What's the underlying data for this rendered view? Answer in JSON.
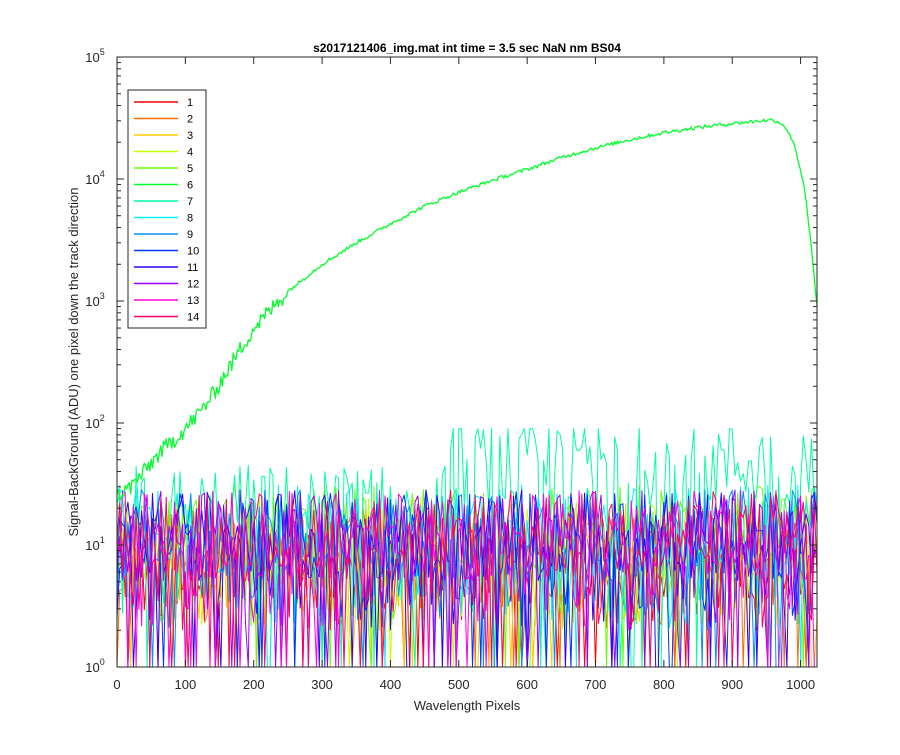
{
  "chart_data": {
    "type": "line",
    "title": "s2017121406_img.mat int time = 3.5 sec  NaN nm BS04",
    "xlabel": "Wavelength Pixels",
    "ylabel": "Signal-BackGround (ADU) one pixel down the track direction",
    "xlim": [
      0,
      1024
    ],
    "ylim": [
      1,
      100000
    ],
    "yscale": "log",
    "grid": false,
    "legend_position": "top-left",
    "x_ticks": [
      0,
      100,
      200,
      300,
      400,
      500,
      600,
      700,
      800,
      900,
      1000
    ],
    "x_tick_labels": [
      "0",
      "100",
      "200",
      "300",
      "400",
      "500",
      "600",
      "700",
      "800",
      "900",
      "1000"
    ],
    "y_ticks": [
      1,
      10,
      100,
      1000,
      10000,
      100000
    ],
    "y_tick_bases": [
      "10",
      "10",
      "10",
      "10",
      "10",
      "10"
    ],
    "y_tick_exponents": [
      "0",
      "1",
      "2",
      "3",
      "4",
      "5"
    ],
    "series": [
      {
        "name": "1",
        "color": "#ff0000",
        "kind": "noise",
        "typical": 8,
        "max": 40
      },
      {
        "name": "2",
        "color": "#ff6a00",
        "kind": "noise",
        "typical": 9,
        "max": 42
      },
      {
        "name": "3",
        "color": "#ffcc00",
        "kind": "noise",
        "typical": 9,
        "max": 42
      },
      {
        "name": "4",
        "color": "#c6ff00",
        "kind": "noise",
        "typical": 10,
        "max": 45
      },
      {
        "name": "5",
        "color": "#66ff00",
        "kind": "noise",
        "typical": 12,
        "max": 50
      },
      {
        "name": "6",
        "color": "#00ff2a",
        "kind": "signal",
        "x": [
          0,
          20,
          40,
          60,
          80,
          100,
          120,
          140,
          160,
          180,
          200,
          250,
          300,
          350,
          400,
          450,
          500,
          550,
          600,
          650,
          700,
          750,
          800,
          850,
          900,
          940,
          960,
          975,
          990,
          1005,
          1015,
          1024
        ],
        "y": [
          25,
          30,
          40,
          55,
          70,
          90,
          120,
          170,
          260,
          400,
          600,
          1200,
          2000,
          3000,
          4300,
          6000,
          7800,
          9800,
          12000,
          15000,
          18000,
          21000,
          24000,
          26500,
          28500,
          30000,
          30500,
          28000,
          20000,
          9000,
          3000,
          900
        ]
      },
      {
        "name": "7",
        "color": "#00ffa0",
        "kind": "noise",
        "typical": 18,
        "max": 90,
        "rise": true
      },
      {
        "name": "8",
        "color": "#00f0ff",
        "kind": "noise",
        "typical": 12,
        "max": 48
      },
      {
        "name": "9",
        "color": "#0090ff",
        "kind": "noise",
        "typical": 11,
        "max": 45
      },
      {
        "name": "10",
        "color": "#0033ff",
        "kind": "noise",
        "typical": 11,
        "max": 45
      },
      {
        "name": "11",
        "color": "#3300ff",
        "kind": "noise",
        "typical": 11,
        "max": 45
      },
      {
        "name": "12",
        "color": "#9900ff",
        "kind": "noise",
        "typical": 11,
        "max": 45
      },
      {
        "name": "13",
        "color": "#ff00e0",
        "kind": "noise",
        "typical": 11,
        "max": 48
      },
      {
        "name": "14",
        "color": "#ff0066",
        "kind": "noise",
        "typical": 11,
        "max": 48
      }
    ]
  }
}
